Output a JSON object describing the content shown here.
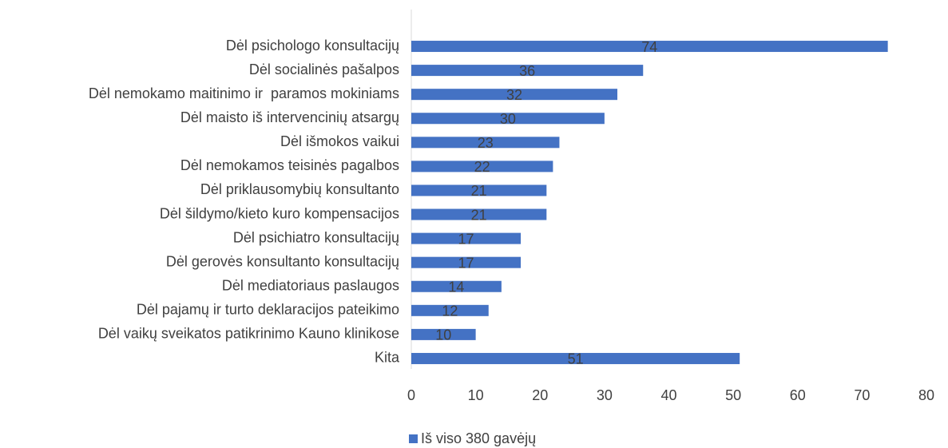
{
  "chart_data": {
    "type": "barh",
    "categories": [
      "Dėl psichologo konsultacijų",
      "Dėl socialinės pašalpos",
      "Dėl nemokamo maitinimo ir  paramos mokiniams",
      "Dėl maisto iš intervencinių atsargų",
      "Dėl išmokos vaikui",
      "Dėl nemokamos teisinės pagalbos",
      "Dėl priklausomybių konsultanto",
      "Dėl šildymo/kieto kuro kompensacijos",
      "Dėl psichiatro konsultacijų",
      "Dėl gerovės konsultanto konsultacijų",
      "Dėl mediatoriaus paslaugos",
      "Dėl pajamų ir turto deklaracijos pateikimo",
      "Dėl vaikų sveikatos patikrinimo Kauno klinikose",
      "Kita"
    ],
    "series": [
      {
        "name": "Iš viso 380 gavėjų",
        "color": "#4472c4",
        "values": [
          74,
          36,
          32,
          30,
          23,
          22,
          21,
          21,
          17,
          17,
          14,
          12,
          10,
          51
        ]
      }
    ],
    "xlim": [
      0,
      80
    ],
    "xticks": [
      0,
      10,
      20,
      30,
      40,
      50,
      60,
      70,
      80
    ],
    "grid": false,
    "legend": "bottom"
  }
}
